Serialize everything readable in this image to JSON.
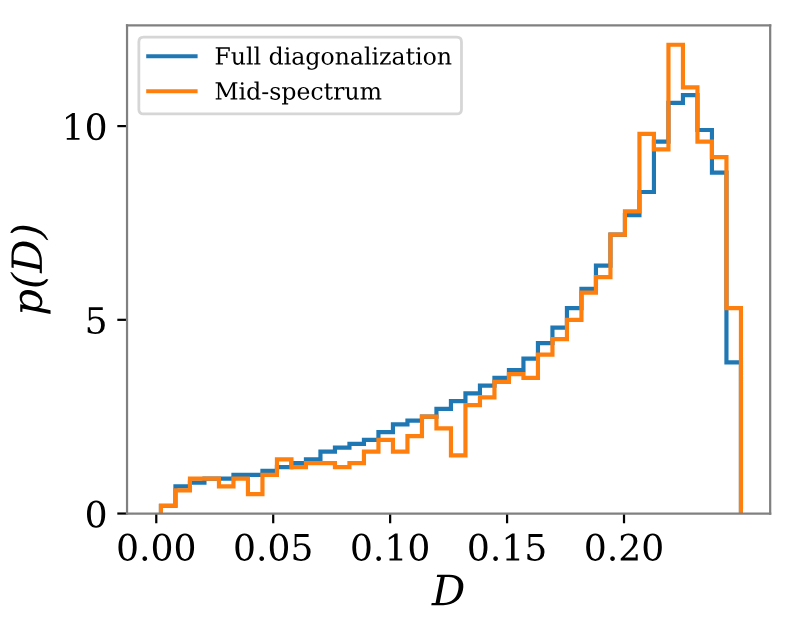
{
  "chart_data": {
    "type": "histogram",
    "xlabel": "D",
    "ylabel": "p(D)",
    "grid": false,
    "xlim": [
      -0.0125,
      0.2625
    ],
    "ylim": [
      0,
      12.6
    ],
    "xticks": [
      {
        "value": 0,
        "label": "0.00"
      },
      {
        "value": 0.05,
        "label": "0.05"
      },
      {
        "value": 0.1,
        "label": "0.10"
      },
      {
        "value": 0.15,
        "label": "0.15"
      },
      {
        "value": 0.2,
        "label": "0.20"
      }
    ],
    "yticks": [
      0,
      5,
      10
    ],
    "legend": "top left",
    "bins": [
      0.002,
      0.0082,
      0.0144,
      0.0206,
      0.0268,
      0.033,
      0.0392,
      0.0454,
      0.0516,
      0.0578,
      0.064,
      0.0702,
      0.0764,
      0.0826,
      0.0888,
      0.095,
      0.1012,
      0.1074,
      0.1136,
      0.1198,
      0.126,
      0.1322,
      0.1384,
      0.1446,
      0.1508,
      0.157,
      0.1632,
      0.1694,
      0.1756,
      0.1818,
      0.188,
      0.1942,
      0.2004,
      0.2066,
      0.2128,
      0.219,
      0.2252,
      0.2314,
      0.2376,
      0.2438,
      0.25
    ],
    "series": [
      {
        "name": "Full diagonalization",
        "color": "#1f77b4",
        "values": [
          0.2,
          0.7,
          0.8,
          0.9,
          0.9,
          1.0,
          1.0,
          1.1,
          1.2,
          1.3,
          1.4,
          1.6,
          1.7,
          1.8,
          1.9,
          2.1,
          2.3,
          2.4,
          2.5,
          2.7,
          2.9,
          3.1,
          3.3,
          3.5,
          3.7,
          4.0,
          4.4,
          4.8,
          5.3,
          5.8,
          6.4,
          7.2,
          7.7,
          8.3,
          9.6,
          10.6,
          10.8,
          9.9,
          8.8,
          3.9
        ]
      },
      {
        "name": "Mid-spectrum",
        "color": "#ff7f0e",
        "values": [
          0.2,
          0.6,
          0.9,
          0.9,
          0.7,
          0.9,
          0.5,
          1.0,
          1.4,
          1.2,
          1.3,
          1.3,
          1.2,
          1.3,
          1.6,
          1.9,
          1.6,
          2.0,
          2.5,
          2.2,
          1.5,
          2.8,
          3.0,
          3.4,
          3.6,
          3.5,
          4.1,
          4.5,
          5.0,
          5.7,
          6.1,
          7.2,
          7.8,
          9.8,
          9.4,
          12.1,
          11.0,
          9.6,
          9.2,
          5.3
        ]
      }
    ]
  }
}
